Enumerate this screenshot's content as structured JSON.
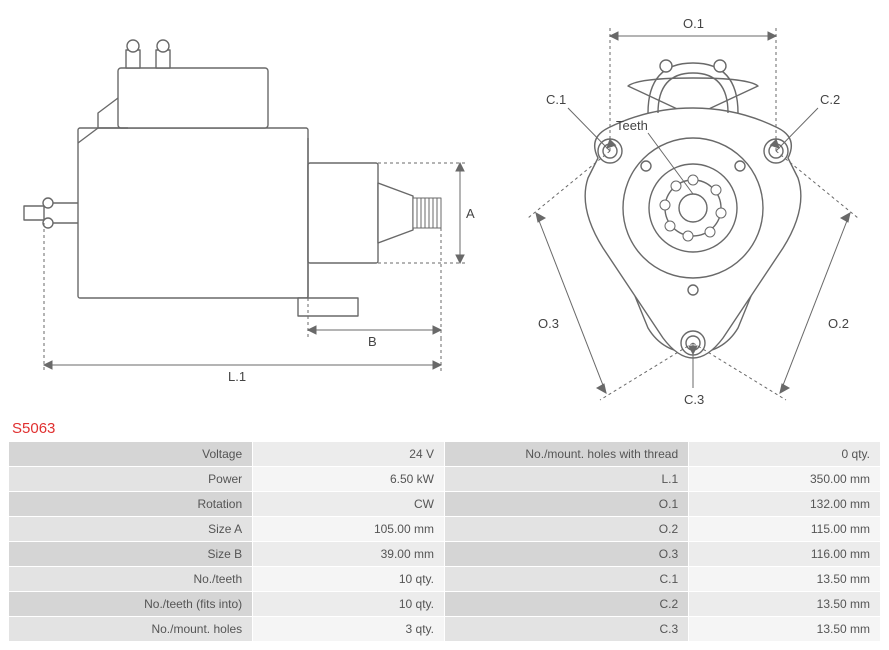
{
  "part_number": "S5063",
  "diagrams": {
    "side": {
      "labels": {
        "A": "A",
        "B": "B",
        "L1": "L.1"
      },
      "stroke": "#696969",
      "dash": "3,3"
    },
    "front": {
      "labels": {
        "O1": "O.1",
        "O2": "O.2",
        "O3": "O.3",
        "C1": "C.1",
        "C2": "C.2",
        "C3": "C.3",
        "Teeth": "Teeth"
      },
      "stroke": "#696969",
      "dash": "3,3"
    }
  },
  "specs_left": [
    {
      "label": "Voltage",
      "value": "24 V"
    },
    {
      "label": "Power",
      "value": "6.50 kW"
    },
    {
      "label": "Rotation",
      "value": "CW"
    },
    {
      "label": "Size A",
      "value": "105.00 mm"
    },
    {
      "label": "Size B",
      "value": "39.00 mm"
    },
    {
      "label": "No./teeth",
      "value": "10 qty."
    },
    {
      "label": "No./teeth (fits into)",
      "value": "10 qty."
    },
    {
      "label": "No./mount. holes",
      "value": "3 qty."
    }
  ],
  "specs_right": [
    {
      "label": "No./mount. holes with thread",
      "value": "0 qty."
    },
    {
      "label": "L.1",
      "value": "350.00 mm"
    },
    {
      "label": "O.1",
      "value": "132.00 mm"
    },
    {
      "label": "O.2",
      "value": "115.00 mm"
    },
    {
      "label": "O.3",
      "value": "116.00 mm"
    },
    {
      "label": "C.1",
      "value": "13.50 mm"
    },
    {
      "label": "C.2",
      "value": "13.50 mm"
    },
    {
      "label": "C.3",
      "value": "13.50 mm"
    }
  ],
  "style": {
    "row_odd_label_bg": "#d5d5d5",
    "row_odd_value_bg": "#ececec",
    "row_even_label_bg": "#e3e3e3",
    "row_even_value_bg": "#f5f5f5",
    "part_color": "#e03030",
    "text_color": "#555555",
    "font_family": "Verdana",
    "font_size_pt": 9
  }
}
